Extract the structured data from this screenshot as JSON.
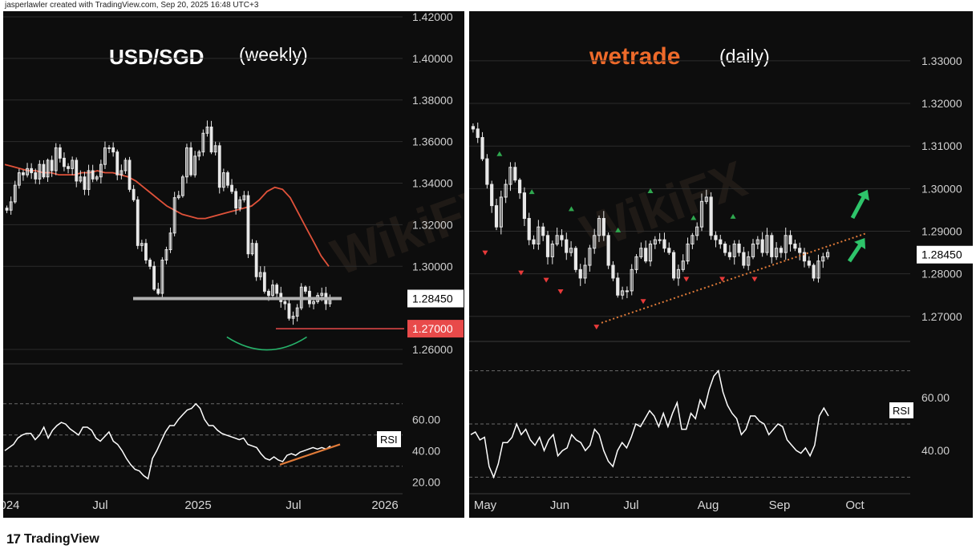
{
  "attribution": "jasperlawler created with TradingView.com, Sep 20, 2025 16:48 UTC+3",
  "footer": {
    "logo_text": "TradingView"
  },
  "colors": {
    "background": "#0d0d0d",
    "candle": "#e8e8e8",
    "ma": "#e0523a",
    "support": "#b0b0b0",
    "price_label": "#ffffff",
    "price_red": "#e84a4a",
    "arc": "#27b36b",
    "trend": "#e07b39",
    "rsi_line": "#ffffff",
    "arrow_up": "#2ec46a",
    "arrow_down": "#e83a3a",
    "brand": "#ee6a2a"
  },
  "watermark": {
    "text": "WikiFX"
  },
  "chart_data": [
    {
      "type": "candlestick",
      "title": "USD/SGD",
      "subtitle": "(weekly)",
      "ylim": [
        1.255,
        1.42
      ],
      "yticks": [
        "1.42000",
        "1.40000",
        "1.38000",
        "1.36000",
        "1.34000",
        "1.32000",
        "1.30000",
        "1.26000"
      ],
      "ytick_values": [
        1.42,
        1.4,
        1.38,
        1.36,
        1.34,
        1.32,
        1.3,
        1.26
      ],
      "xticks": [
        "024",
        "Jul",
        "2025",
        "Jul",
        "2026"
      ],
      "price_labels": [
        {
          "value": 1.2845,
          "text": "1.28450",
          "style": "current"
        },
        {
          "value": 1.27,
          "text": "1.27000",
          "style": "red"
        }
      ],
      "support_level": 1.2845,
      "red_level": 1.27,
      "close": [
        1.327,
        1.331,
        1.339,
        1.345,
        1.344,
        1.347,
        1.345,
        1.342,
        1.349,
        1.343,
        1.351,
        1.346,
        1.357,
        1.352,
        1.348,
        1.347,
        1.351,
        1.341,
        1.343,
        1.337,
        1.346,
        1.342,
        1.343,
        1.349,
        1.357,
        1.357,
        1.355,
        1.344,
        1.346,
        1.351,
        1.337,
        1.332,
        1.31,
        1.311,
        1.303,
        1.3,
        1.289,
        1.287,
        1.303,
        1.308,
        1.316,
        1.333,
        1.334,
        1.343,
        1.357,
        1.344,
        1.353,
        1.355,
        1.364,
        1.367,
        1.355,
        1.358,
        1.338,
        1.345,
        1.339,
        1.336,
        1.328,
        1.332,
        1.334,
        1.306,
        1.311,
        1.295,
        1.297,
        1.288,
        1.286,
        1.291,
        1.287,
        1.283,
        1.282,
        1.275,
        1.276,
        1.28,
        1.29,
        1.288,
        1.282,
        1.283,
        1.286,
        1.287,
        1.282,
        1.285
      ],
      "ma": [
        1.349,
        1.348,
        1.347,
        1.346,
        1.346,
        1.345,
        1.345,
        1.344,
        1.344,
        1.344,
        1.345,
        1.345,
        1.346,
        1.345,
        1.345,
        1.344,
        1.343,
        1.341,
        1.338,
        1.335,
        1.332,
        1.329,
        1.327,
        1.325,
        1.324,
        1.323,
        1.323,
        1.324,
        1.325,
        1.326,
        1.327,
        1.328,
        1.329,
        1.332,
        1.336,
        1.338,
        1.337,
        1.333,
        1.326,
        1.319,
        1.312,
        1.305,
        1.3
      ],
      "arc": {
        "from_x": 0.56,
        "to_x": 0.76,
        "bottom": 1.259,
        "top": 1.266
      },
      "rsi": {
        "ylim": [
          15,
          75
        ],
        "yticks": [
          "60.00",
          "40.00",
          "20.00"
        ],
        "ytick_values": [
          60,
          40,
          20
        ],
        "label": "RSI",
        "values": [
          40,
          42,
          44,
          48,
          50,
          51,
          51,
          47,
          50,
          55,
          48,
          53,
          56,
          58,
          57,
          54,
          52,
          50,
          55,
          55,
          53,
          48,
          46,
          49,
          52,
          46,
          44,
          40,
          35,
          31,
          28,
          27,
          24,
          22,
          35,
          40,
          46,
          52,
          56,
          56,
          60,
          63,
          66,
          67,
          70,
          67,
          60,
          56,
          56,
          53,
          51,
          50,
          49,
          48,
          47,
          48,
          44,
          43,
          42,
          38,
          35,
          34,
          36,
          34,
          33,
          37,
          38,
          37,
          39,
          40,
          41,
          42,
          41,
          42,
          41,
          43
        ]
      }
    },
    {
      "type": "candlestick",
      "title": "(daily)",
      "brand": "wetrade",
      "ylim": [
        1.263,
        1.336
      ],
      "yticks": [
        "1.33000",
        "1.32000",
        "1.31000",
        "1.30000",
        "1.29000",
        "1.28000",
        "1.27000"
      ],
      "ytick_values": [
        1.33,
        1.32,
        1.31,
        1.3,
        1.29,
        1.28,
        1.27
      ],
      "xticks": [
        "May",
        "Jun",
        "Jul",
        "Aug",
        "Sep",
        "Oct"
      ],
      "price_labels": [
        {
          "value": 1.2845,
          "text": "1.28450",
          "style": "current"
        }
      ],
      "close": [
        1.314,
        1.312,
        1.307,
        1.301,
        1.296,
        1.291,
        1.298,
        1.301,
        1.305,
        1.302,
        1.299,
        1.293,
        1.288,
        1.287,
        1.291,
        1.289,
        1.284,
        1.287,
        1.289,
        1.288,
        1.285,
        1.286,
        1.281,
        1.279,
        1.282,
        1.286,
        1.289,
        1.293,
        1.289,
        1.282,
        1.279,
        1.275,
        1.276,
        1.276,
        1.281,
        1.284,
        1.286,
        1.283,
        1.287,
        1.288,
        1.288,
        1.286,
        1.285,
        1.279,
        1.281,
        1.283,
        1.287,
        1.289,
        1.291,
        1.297,
        1.298,
        1.289,
        1.288,
        1.287,
        1.285,
        1.284,
        1.287,
        1.285,
        1.282,
        1.284,
        1.287,
        1.288,
        1.285,
        1.289,
        1.284,
        1.286,
        1.285,
        1.289,
        1.287,
        1.286,
        1.285,
        1.283,
        1.282,
        1.279,
        1.283,
        1.284,
        1.285
      ],
      "trendline": {
        "from": [
          0.3,
          1.2685
        ],
        "to": [
          0.9,
          1.2895
        ]
      },
      "markers_up": [
        [
          0.08,
          1.3082
        ],
        [
          0.17,
          1.2993
        ],
        [
          0.28,
          1.2953
        ],
        [
          0.41,
          1.2903
        ],
        [
          0.5,
          1.2995
        ],
        [
          0.62,
          1.2932
        ],
        [
          0.73,
          1.2935
        ]
      ],
      "markers_down": [
        [
          0.04,
          1.2849
        ],
        [
          0.14,
          1.2802
        ],
        [
          0.21,
          1.2785
        ],
        [
          0.25,
          1.2758
        ],
        [
          0.35,
          1.2675
        ],
        [
          0.48,
          1.2735
        ],
        [
          0.6,
          1.2787
        ],
        [
          0.7,
          1.2787
        ],
        [
          0.79,
          1.2787
        ]
      ],
      "rsi": {
        "ylim": [
          25,
          75
        ],
        "yticks": [
          "60.00",
          "40.00"
        ],
        "ytick_values": [
          60,
          40
        ],
        "label": "RSI",
        "values": [
          46,
          47,
          44,
          45,
          34,
          30,
          35,
          43,
          43,
          45,
          50,
          46,
          48,
          44,
          42,
          45,
          40,
          44,
          46,
          38,
          40,
          41,
          46,
          44,
          43,
          40,
          42,
          48,
          46,
          40,
          36,
          34,
          40,
          43,
          41,
          45,
          50,
          49,
          52,
          55,
          53,
          49,
          54,
          49,
          54,
          58,
          48,
          48,
          54,
          52,
          59,
          56,
          63,
          68,
          70,
          62,
          57,
          54,
          52,
          46,
          48,
          53,
          53,
          51,
          50,
          46,
          48,
          50,
          49,
          44,
          42,
          40,
          39,
          41,
          38,
          42,
          53,
          56,
          53
        ]
      }
    }
  ]
}
